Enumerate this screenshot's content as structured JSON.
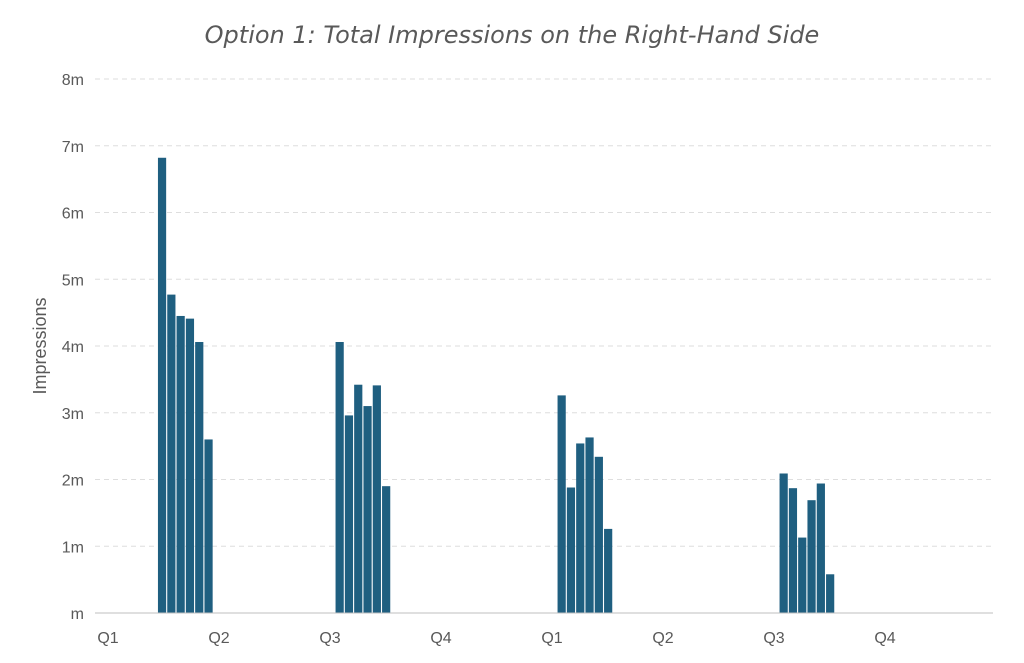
{
  "chart_data": {
    "type": "bar",
    "title": "Option 1: Total Impressions on the Right-Hand Side",
    "xlabel": "",
    "ylabel": "Impressions",
    "ylim": [
      0,
      8
    ],
    "y_unit": "m",
    "y_ticks": [
      {
        "value": 0,
        "label": "m"
      },
      {
        "value": 1,
        "label": "1m"
      },
      {
        "value": 2,
        "label": "2m"
      },
      {
        "value": 3,
        "label": "3m"
      },
      {
        "value": 4,
        "label": "4m"
      },
      {
        "value": 5,
        "label": "5m"
      },
      {
        "value": 6,
        "label": "6m"
      },
      {
        "value": 7,
        "label": "7m"
      },
      {
        "value": 8,
        "label": "8m"
      }
    ],
    "x_ticks": [
      "Q1",
      "Q2",
      "Q3",
      "Q4",
      "Q1",
      "Q2",
      "Q3",
      "Q4"
    ],
    "grid": true,
    "bar_color": "#1f5f80",
    "groups": [
      {
        "position_quarter": 0.45,
        "values": [
          6.82,
          4.77,
          4.45,
          4.41,
          4.06,
          2.6
        ]
      },
      {
        "position_quarter": 2.05,
        "values": [
          4.06,
          2.96,
          3.42,
          3.1,
          3.41,
          1.9
        ]
      },
      {
        "position_quarter": 4.05,
        "values": [
          3.26,
          1.88,
          2.54,
          2.63,
          2.34,
          1.26
        ]
      },
      {
        "position_quarter": 6.05,
        "values": [
          2.09,
          1.87,
          1.13,
          1.69,
          1.94,
          0.58
        ]
      }
    ]
  }
}
